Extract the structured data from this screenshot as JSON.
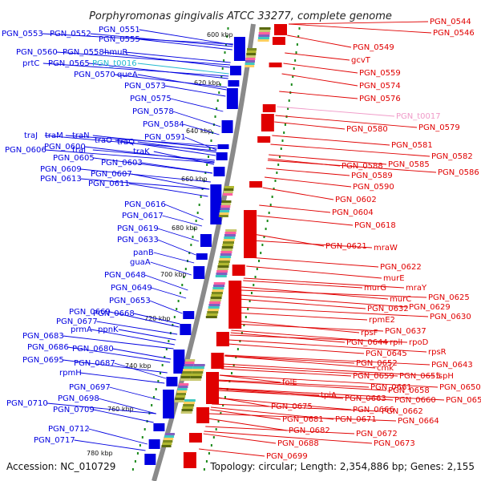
{
  "header": {
    "title": "Porphyromonas gingivalis ATCC 33277, complete genome"
  },
  "footer": {
    "accession": "Accession: NC_010729",
    "summary": "Topology: circular; Length: 2,354,886 bp; Genes: 2,155"
  },
  "colors": {
    "forward": "#0000e0",
    "reverse": "#e00000",
    "rna_forward": "#20b8d0",
    "rna_reverse": "#f09ac8",
    "backbone": "#8a8a8a",
    "tick": "#1a8a1a"
  },
  "kbp_ticks": [
    "600 kbp",
    "620 kbp",
    "640 kbp",
    "660 kbp",
    "680 kbp",
    "700 kbp",
    "720 kbp",
    "740 kbp",
    "760 kbp",
    "780 kbp"
  ],
  "left_labels": [
    "PGN_0553",
    "PGN_0552",
    "PGN_0551",
    "PGN_0555",
    "PGN_0560",
    "PGN_0558",
    "hmuR",
    "prtC",
    "PGN_0565",
    "PGN_t0016",
    "PGN_0570",
    "queA",
    "PGN_0573",
    "PGN_0575",
    "PGN_0578",
    "PGN_0584",
    "PGN_0591",
    "traJ",
    "traM",
    "traN",
    "traO",
    "traQ",
    "PGN_0606",
    "PGN_0600",
    "traI",
    "traK",
    "PGN_0605",
    "PGN_0603",
    "PGN_0609",
    "PGN_0607",
    "PGN_0613",
    "PGN_0611",
    "PGN_0616",
    "PGN_0617",
    "PGN_0619",
    "PGN_0633",
    "panB",
    "guaA",
    "PGN_0648",
    "PGN_0649",
    "PGN_0653",
    "PGN_0669",
    "PGN_0668",
    "PGN_0677",
    "prmA",
    "ppnK",
    "PGN_0683",
    "PGN_0686",
    "PGN_0680",
    "PGN_0695",
    "PGN_0687",
    "rpmH",
    "PGN_0697",
    "PGN_0698",
    "PGN_0710",
    "PGN_0709",
    "PGN_0712",
    "PGN_0717"
  ],
  "right_labels": [
    "PGN_0544",
    "PGN_0546",
    "PGN_0549",
    "gcvT",
    "PGN_0559",
    "PGN_0574",
    "PGN_0576",
    "PGN_t0017",
    "PGN_0579",
    "PGN_0580",
    "PGN_0581",
    "PGN_0582",
    "PGN_0588",
    "PGN_0585",
    "PGN_0586",
    "PGN_0589",
    "PGN_0590",
    "PGN_0602",
    "PGN_0604",
    "PGN_0618",
    "PGN_0621",
    "mraW",
    "PGN_0622",
    "murE",
    "murG",
    "mraY",
    "murC",
    "PGN_0625",
    "PGN_0632",
    "PGN_0629",
    "rpmE2",
    "PGN_0630",
    "rpsF",
    "PGN_0637",
    "PGN_0644",
    "rplI",
    "rpoD",
    "PGN_0645",
    "rpsR",
    "PGN_0652",
    "PGN_0643",
    "cmk",
    "PGN_0659",
    "PGN_0655",
    "ispH",
    "PGN_0661",
    "PGN_0658",
    "PGN_0650",
    "folE",
    "PGN_0660",
    "PGN_0656",
    "tpiA",
    "PGN_0663",
    "PGN_0666",
    "PGN_0662",
    "PGN_0675",
    "PGN_0671",
    "PGN_0664",
    "PGN_0681",
    "PGN_0682",
    "PGN_0672",
    "PGN_0688",
    "PGN_0673",
    "PGN_0699"
  ]
}
